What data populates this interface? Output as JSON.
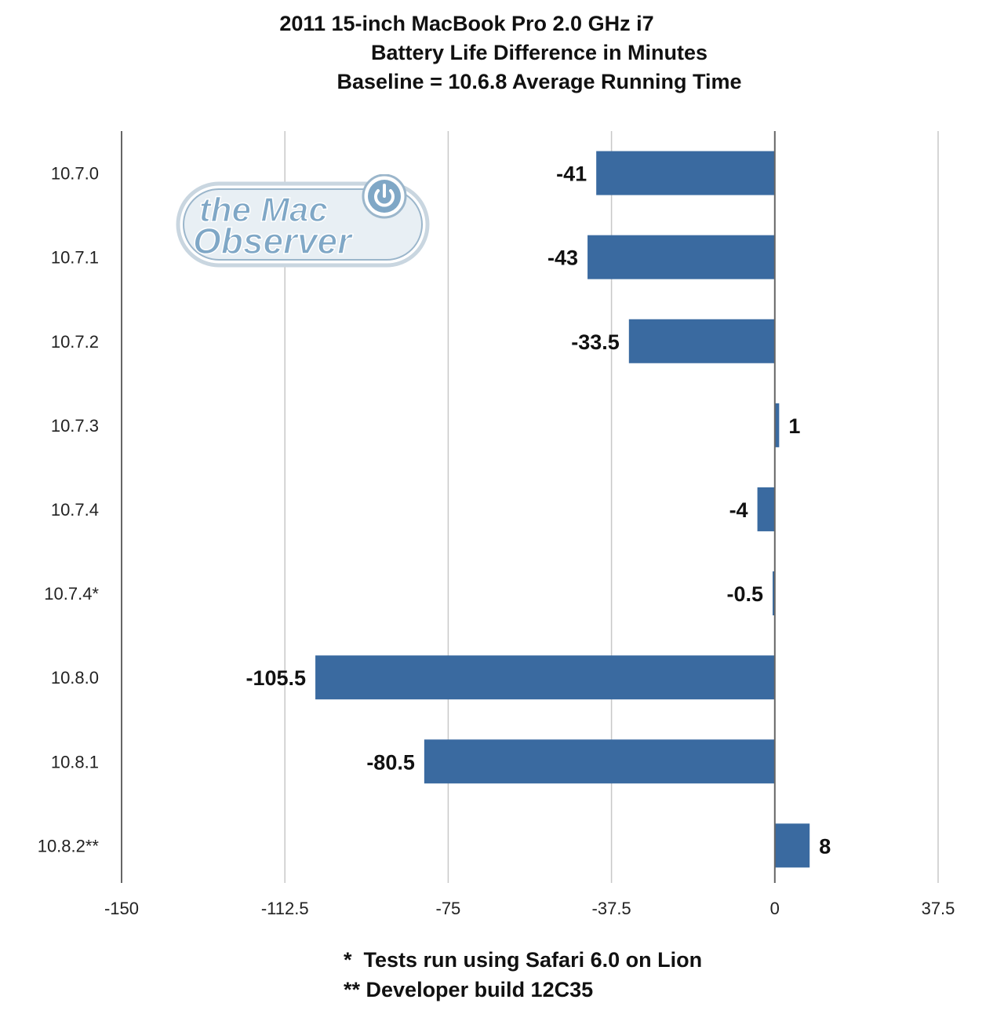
{
  "chart_data": {
    "type": "bar",
    "orientation": "horizontal",
    "title": "2011 15-inch MacBook Pro 2.0 GHz i7",
    "subtitle": "Battery Life Difference in Minutes",
    "subtitle2": "Baseline = 10.6.8 Average Running Time",
    "categories": [
      "10.7.0",
      "10.7.1",
      "10.7.2",
      "10.7.3",
      "10.7.4",
      "10.7.4*",
      "10.8.0",
      "10.8.1",
      "10.8.2**"
    ],
    "values": [
      -41,
      -43,
      -33.5,
      1,
      -4,
      -0.5,
      -105.5,
      -80.5,
      8
    ],
    "value_labels": [
      "-41",
      "-43",
      "-33.5",
      "1",
      "-4",
      "-0.5",
      "-105.5",
      "-80.5",
      "8"
    ],
    "xlim": [
      -150,
      37.5
    ],
    "xticks": [
      -150,
      -112.5,
      -75,
      -37.5,
      0,
      37.5
    ],
    "xtick_labels": [
      "-150",
      "-112.5",
      "-75",
      "-37.5",
      "0",
      "37.5"
    ],
    "xlabel": "",
    "ylabel": "",
    "grid": true,
    "bar_color": "#3a6aa0",
    "grid_color": "#c8c8c8",
    "axis_color": "#666666"
  },
  "watermark": {
    "text_line1": "the Mac",
    "text_line2": "Observer",
    "icon": "power-icon",
    "color": "#7fa7c6"
  },
  "footnotes": [
    "*  Tests run using Safari 6.0 on Lion",
    "** Developer build 12C35"
  ]
}
